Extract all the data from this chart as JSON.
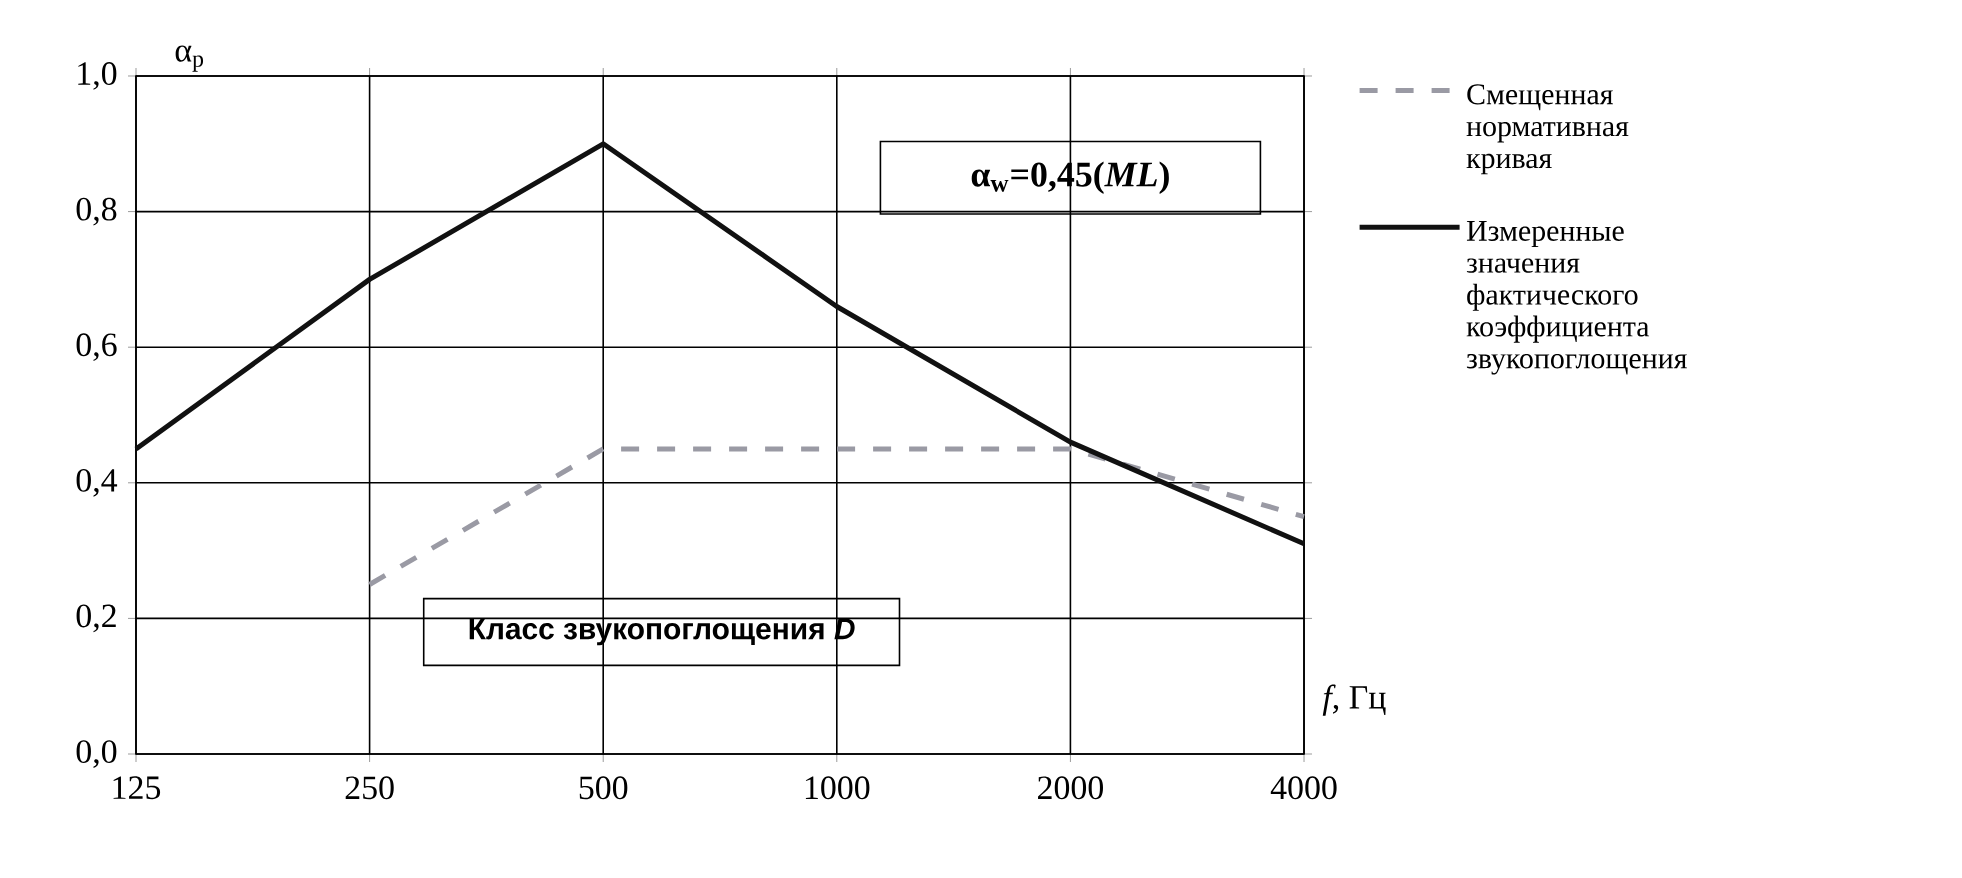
{
  "chart_data": {
    "type": "line",
    "xlabel": "*f*, Гц",
    "ylabel": "α$_{p}$",
    "categories": [
      "125",
      "250",
      "500",
      "1000",
      "2000",
      "4000"
    ],
    "series": [
      {
        "name": "Смещенная нормативная кривая",
        "color": "#9a9aa4",
        "line_style": "dashed",
        "values": [
          null,
          0.25,
          0.45,
          0.45,
          0.45,
          0.35
        ]
      },
      {
        "name": "Измеренные значения фактического коэффициента звукопоглощения",
        "color": "#111111",
        "line_style": "solid",
        "values": [
          0.45,
          0.7,
          0.9,
          0.66,
          0.46,
          0.31
        ]
      }
    ],
    "ylim": [
      0,
      1
    ],
    "yticks": [
      {
        "value": 0,
        "label": "0,0"
      },
      {
        "value": 0.2,
        "label": "0,2"
      },
      {
        "value": 0.4,
        "label": "0,4"
      },
      {
        "value": 0.6,
        "label": "0,6"
      },
      {
        "value": 0.8,
        "label": "0,8"
      },
      {
        "value": 1,
        "label": "1,0"
      }
    ],
    "grid": true,
    "legend": "right",
    "marker": "none",
    "annotations": [
      "α$_{w}$=0,45(*ML*)",
      "Класс звукопоглощения *D*"
    ]
  }
}
